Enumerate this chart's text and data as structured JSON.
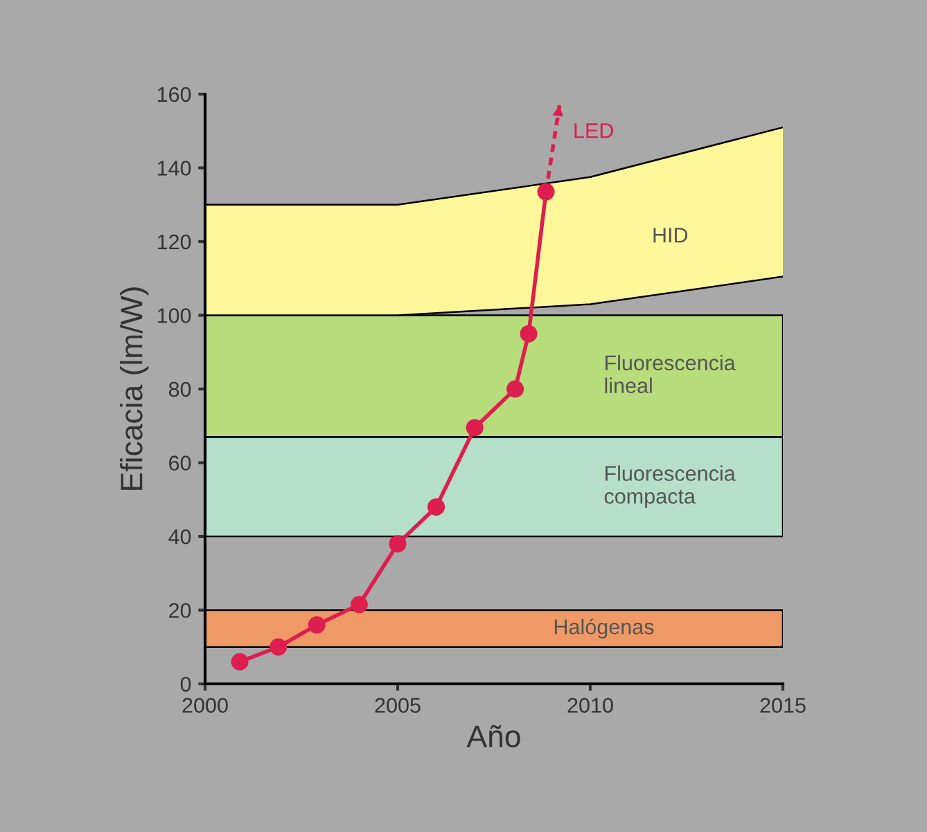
{
  "chart_data": {
    "type": "line",
    "xlabel": "Año",
    "ylabel": "Eficacia (lm/W)",
    "xlim": [
      2000,
      2015
    ],
    "xticks": [
      2000,
      2005,
      2010,
      2015
    ],
    "ylim": [
      0,
      160
    ],
    "yticks": [
      0,
      20,
      40,
      60,
      80,
      100,
      120,
      140,
      160
    ],
    "series": [
      {
        "color": "#000000",
        "marker": "none",
        "line_style": "solid",
        "x": [
          2000,
          2005,
          2010,
          2015
        ],
        "values": [
          100,
          100,
          103,
          110.5
        ]
      },
      {
        "type": "area",
        "name": "HID",
        "color": "#fff799",
        "x": [
          2000,
          2005,
          2010,
          2015
        ],
        "values": [
          130,
          130,
          137.5,
          151
        ]
      },
      {
        "name": "LED",
        "color": "#dd1f4f",
        "marker": "circle",
        "line_style": "solid",
        "x": [
          2000.9,
          2001.9,
          2002.9,
          2004.0,
          2005.0,
          2006.0,
          2007.0,
          2008.05,
          2008.4,
          2008.85
        ],
        "values": [
          6,
          10,
          16,
          21.5,
          38,
          48,
          69.5,
          80,
          95,
          133.5
        ]
      },
      {
        "color": "#dd1f4f",
        "marker": "none",
        "line_style": "dashed",
        "x": [
          2008.85,
          2009.2
        ],
        "values": [
          133.5,
          157
        ]
      }
    ],
    "bands": [
      {
        "axis": "y",
        "from": 10,
        "to": 20,
        "label": "Halógenas",
        "color": "#ee9966"
      },
      {
        "axis": "y",
        "from": 40,
        "to": 67,
        "label": "Fluorescencia\ncompacta",
        "color": "#b5dfc9"
      },
      {
        "axis": "y",
        "from": 67,
        "to": 100,
        "label": "Fluorescencia\nlineal",
        "color": "#b7dc7c"
      }
    ]
  }
}
